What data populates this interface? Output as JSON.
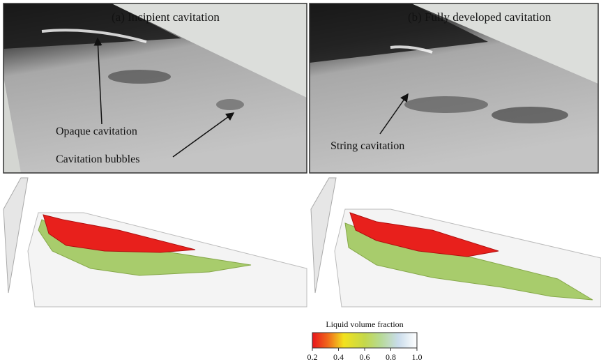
{
  "panels": [
    {
      "title": "(a) Incipient cavitation",
      "annotations": [
        "Opaque cavitation",
        "Cavitation bubbles"
      ]
    },
    {
      "title": "(b) Fully developed cavitation",
      "annotations": [
        "String cavitation"
      ]
    }
  ],
  "colorbar": {
    "label": "Liquid volume fraction",
    "range": [
      0.2,
      1
    ],
    "ticks": [
      0.2,
      0.4,
      0.6,
      0.8,
      {
        "value": 1,
        "label": "1.0"
      }
    ]
  }
}
